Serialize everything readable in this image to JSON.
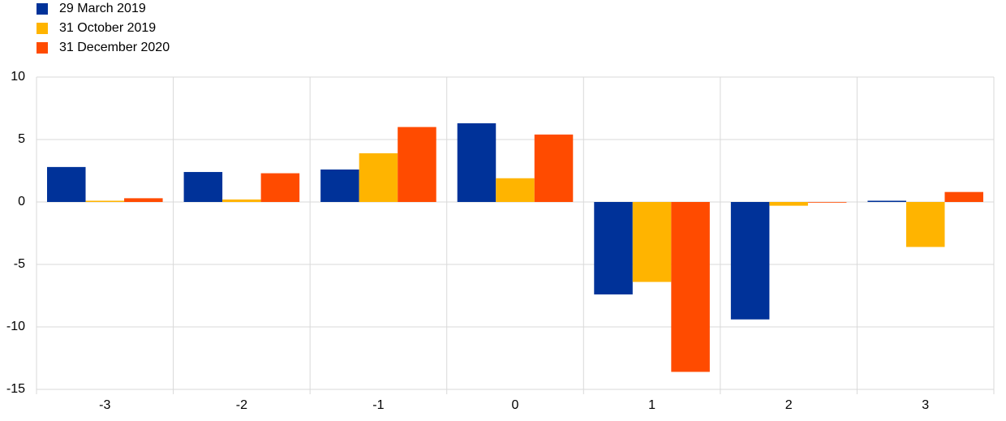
{
  "chart_data": {
    "type": "bar",
    "categories": [
      "-3",
      "-2",
      "-1",
      "0",
      "1",
      "2",
      "3"
    ],
    "series": [
      {
        "name": "29 March 2019",
        "color": "#003299",
        "values": [
          2.8,
          2.4,
          2.6,
          6.3,
          -7.4,
          -9.4,
          0.1
        ]
      },
      {
        "name": "31 October 2019",
        "color": "#ffb400",
        "values": [
          0.1,
          0.2,
          3.9,
          1.9,
          -6.4,
          -0.3,
          -3.6
        ]
      },
      {
        "name": "31 December 2020",
        "color": "#ff4b00",
        "values": [
          0.3,
          2.3,
          6.0,
          5.4,
          -13.6,
          0.0,
          0.8
        ]
      }
    ],
    "ylim": [
      -15,
      10
    ],
    "yticks": [
      -15,
      -10,
      -5,
      0,
      5,
      10
    ],
    "grid": true,
    "legend": "top-left"
  }
}
